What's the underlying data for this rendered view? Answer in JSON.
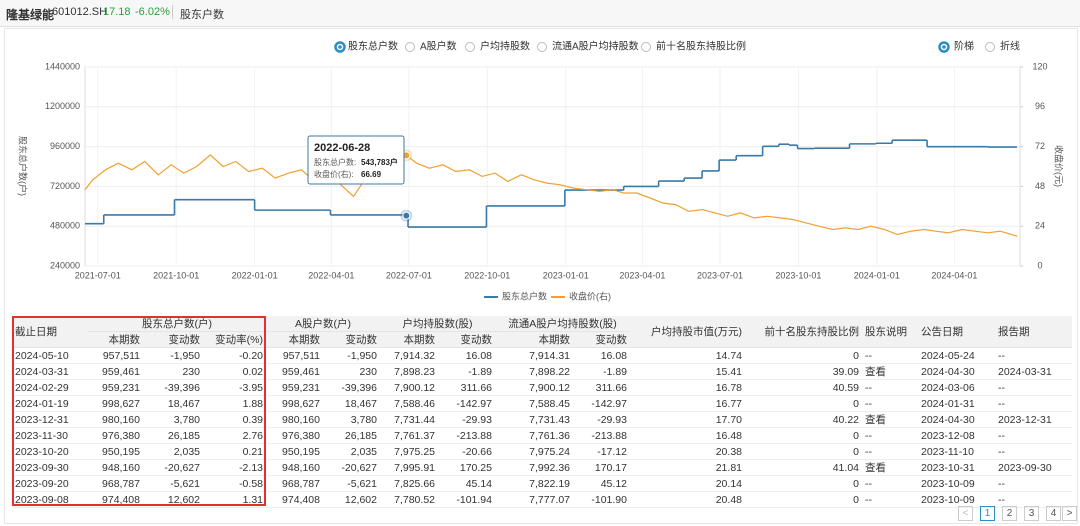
{
  "header": {
    "name": "隆基绿能",
    "code": "601012.SH",
    "price": "17.18",
    "change": "-6.02%",
    "tab": "股东户数"
  },
  "options": [
    {
      "label": "股东总户数",
      "selected": true
    },
    {
      "label": "A股户数",
      "selected": false
    },
    {
      "label": "户均持股数",
      "selected": false
    },
    {
      "label": "流通A股户均持股数",
      "selected": false
    },
    {
      "label": "前十名股东持股比例",
      "selected": false
    }
  ],
  "styles": [
    {
      "label": "阶梯",
      "selected": true
    },
    {
      "label": "折线",
      "selected": false
    }
  ],
  "chart_data": {
    "type": "line",
    "ylabel": "股东总户数(户)",
    "y2label": "收盘价(元)",
    "xlim": [
      "2021-06-16",
      "2024-06-17"
    ],
    "xticks": [
      "2021-07-01",
      "2021-10-01",
      "2022-01-01",
      "2022-04-01",
      "2022-07-01",
      "2022-10-01",
      "2023-01-01",
      "2023-04-01",
      "2023-07-01",
      "2023-10-01",
      "2024-01-01",
      "2024-04-01"
    ],
    "ylim": [
      240000,
      1440000
    ],
    "yticks": [
      240000,
      480000,
      720000,
      960000,
      1200000,
      1440000
    ],
    "y2lim": [
      0,
      120
    ],
    "y2ticks": [
      0,
      24,
      48,
      72,
      96,
      120
    ],
    "grid": true,
    "legend": "bottom",
    "series": [
      {
        "name": "股东总户数",
        "color": "#3a7aa8",
        "step": true,
        "x": [
          "2021-06-16",
          "2021-07-08",
          "2021-09-29",
          "2022-01-01",
          "2022-03-31",
          "2022-06-28",
          "2022-06-30",
          "2022-09-30",
          "2022-12-31",
          "2023-03-10",
          "2023-04-20",
          "2023-05-20",
          "2023-06-10",
          "2023-06-30",
          "2023-07-20",
          "2023-08-20",
          "2023-09-08",
          "2023-09-20",
          "2023-09-30",
          "2023-10-20",
          "2023-11-30",
          "2023-12-31",
          "2024-01-19",
          "2024-02-29",
          "2024-03-31",
          "2024-05-10"
        ],
        "values": [
          495000,
          548000,
          640000,
          577000,
          548000,
          543783,
          475000,
          602000,
          698000,
          720000,
          752000,
          770000,
          813000,
          879000,
          905000,
          961806,
          974408,
          968787,
          948160,
          950195,
          976380,
          980160,
          998627,
          959231,
          959461,
          957511
        ]
      },
      {
        "name": "收盘价(右)",
        "color": "#f0a030",
        "axis": "y2",
        "x": [
          "2021-06-16",
          "2021-06-25",
          "2021-07-10",
          "2021-07-25",
          "2021-08-10",
          "2021-08-25",
          "2021-09-10",
          "2021-09-25",
          "2021-10-10",
          "2021-10-25",
          "2021-11-10",
          "2021-11-25",
          "2021-12-10",
          "2021-12-25",
          "2022-01-10",
          "2022-01-25",
          "2022-02-10",
          "2022-02-25",
          "2022-03-10",
          "2022-03-25",
          "2022-04-10",
          "2022-04-27",
          "2022-05-10",
          "2022-05-25",
          "2022-06-10",
          "2022-06-28",
          "2022-07-10",
          "2022-07-25",
          "2022-08-10",
          "2022-08-25",
          "2022-09-10",
          "2022-09-25",
          "2022-10-10",
          "2022-10-25",
          "2022-11-10",
          "2022-11-25",
          "2022-12-10",
          "2022-12-25",
          "2023-01-10",
          "2023-01-25",
          "2023-02-10",
          "2023-02-25",
          "2023-03-10",
          "2023-03-25",
          "2023-04-10",
          "2023-04-25",
          "2023-05-10",
          "2023-05-25",
          "2023-06-10",
          "2023-06-25",
          "2023-07-10",
          "2023-07-25",
          "2023-08-10",
          "2023-08-25",
          "2023-09-10",
          "2023-09-25",
          "2023-10-10",
          "2023-10-25",
          "2023-11-10",
          "2023-11-25",
          "2023-12-10",
          "2023-12-25",
          "2024-01-10",
          "2024-01-25",
          "2024-02-10",
          "2024-02-25",
          "2024-03-10",
          "2024-03-25",
          "2024-04-10",
          "2024-04-25",
          "2024-05-10",
          "2024-05-25",
          "2024-06-14"
        ],
        "values": [
          46,
          52,
          58,
          62,
          58,
          63,
          55,
          61,
          56,
          60,
          67,
          60,
          63,
          57,
          59,
          53,
          56,
          58,
          52,
          55,
          50,
          42,
          52,
          56,
          60,
          66.69,
          62,
          59,
          61,
          57,
          58,
          54,
          56,
          51,
          55,
          52,
          50,
          49,
          47,
          46,
          45,
          46,
          44,
          44,
          41,
          38,
          37,
          33,
          34,
          32,
          30,
          32,
          29,
          30,
          29,
          28,
          26,
          24,
          22,
          23,
          22,
          24,
          22,
          19,
          21,
          22,
          21,
          20,
          22,
          21,
          20,
          21,
          18
        ]
      }
    ],
    "tooltip": {
      "title": "2022-06-28",
      "rows": [
        [
          "股东总户数:",
          "543,783户"
        ],
        [
          "收盘价(右):",
          "66.69"
        ]
      ]
    }
  },
  "table": {
    "header": [
      [
        "截止日期",
        "股东总户数(户)",
        "A股户数(户)",
        "户均持股数(股)",
        "流通A股户均持股数(股)",
        "户均持股市值(万元)",
        "前十名股东持股比例",
        "股东说明",
        "公告日期",
        "报告期"
      ],
      [
        "本期数",
        "变动数",
        "变动率(%)",
        "本期数",
        "变动数",
        "本期数",
        "变动数",
        "本期数",
        "变动数"
      ]
    ],
    "rows": [
      [
        "2024-05-10",
        "957,511",
        "-1,950",
        "-0.20",
        "957,511",
        "-1,950",
        "7,914.32",
        "16.08",
        "7,914.31",
        "16.08",
        "14.74",
        "0",
        "--",
        "2024-05-24",
        "--"
      ],
      [
        "2024-03-31",
        "959,461",
        "230",
        "0.02",
        "959,461",
        "230",
        "7,898.23",
        "-1.89",
        "7,898.22",
        "-1.89",
        "15.41",
        "39.09",
        "查看",
        "2024-04-30",
        "2024-03-31"
      ],
      [
        "2024-02-29",
        "959,231",
        "-39,396",
        "-3.95",
        "959,231",
        "-39,396",
        "7,900.12",
        "311.66",
        "7,900.12",
        "311.66",
        "16.78",
        "40.59",
        "--",
        "2024-03-06",
        "--"
      ],
      [
        "2024-01-19",
        "998,627",
        "18,467",
        "1.88",
        "998,627",
        "18,467",
        "7,588.46",
        "-142.97",
        "7,588.45",
        "-142.97",
        "16.77",
        "0",
        "--",
        "2024-01-31",
        "--"
      ],
      [
        "2023-12-31",
        "980,160",
        "3,780",
        "0.39",
        "980,160",
        "3,780",
        "7,731.44",
        "-29.93",
        "7,731.43",
        "-29.93",
        "17.70",
        "40.22",
        "查看",
        "2024-04-30",
        "2023-12-31"
      ],
      [
        "2023-11-30",
        "976,380",
        "26,185",
        "2.76",
        "976,380",
        "26,185",
        "7,761.37",
        "-213.88",
        "7,761.36",
        "-213.88",
        "16.48",
        "0",
        "--",
        "2023-12-08",
        "--"
      ],
      [
        "2023-10-20",
        "950,195",
        "2,035",
        "0.21",
        "950,195",
        "2,035",
        "7,975.25",
        "-20.66",
        "7,975.24",
        "-17.12",
        "20.38",
        "0",
        "--",
        "2023-11-10",
        "--"
      ],
      [
        "2023-09-30",
        "948,160",
        "-20,627",
        "-2.13",
        "948,160",
        "-20,627",
        "7,995.91",
        "170.25",
        "7,992.36",
        "170.17",
        "21.81",
        "41.04",
        "查看",
        "2023-10-31",
        "2023-09-30"
      ],
      [
        "2023-09-20",
        "968,787",
        "-5,621",
        "-0.58",
        "968,787",
        "-5,621",
        "7,825.66",
        "45.14",
        "7,822.19",
        "45.12",
        "20.14",
        "0",
        "--",
        "2023-10-09",
        "--"
      ],
      [
        "2023-09-08",
        "974,408",
        "12,602",
        "1.31",
        "974,408",
        "12,602",
        "7,780.52",
        "-101.94",
        "7,777.07",
        "-101.90",
        "20.48",
        "0",
        "--",
        "2023-10-09",
        "--"
      ]
    ]
  },
  "pagination": {
    "prev": "<",
    "pages": [
      "1",
      "2",
      "3",
      "4"
    ],
    "next": ">"
  }
}
